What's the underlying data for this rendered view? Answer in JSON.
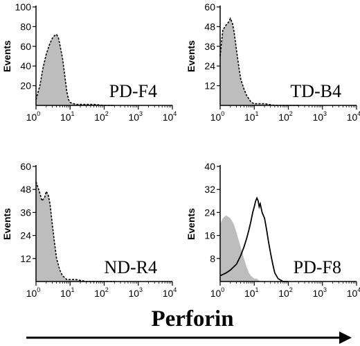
{
  "figure": {
    "x_axis_title": "Perforin",
    "y_axis_label": "Events"
  },
  "colors": {
    "filled_histogram": "#bdbdbd",
    "outline": "#000000"
  },
  "chart_data": [
    {
      "type": "histogram",
      "panel_label": "PD-F4",
      "ylabel": "Events",
      "x_scale": "log",
      "xlim": [
        1,
        10000
      ],
      "x_ticks": [
        "10⁰",
        "10¹",
        "10²",
        "10³",
        "10⁴"
      ],
      "ylim": [
        0,
        100
      ],
      "y_ticks": [
        20,
        40,
        60,
        80,
        100
      ],
      "series": [
        {
          "style": "filled-gray-with-dashed-outline",
          "x": [
            1,
            1.3,
            1.6,
            2,
            2.5,
            3,
            3.5,
            4,
            4.5,
            5,
            6,
            7,
            8,
            9,
            10,
            12,
            15,
            20,
            30,
            50,
            100,
            200
          ],
          "y": [
            6,
            20,
            38,
            52,
            62,
            68,
            71,
            72,
            69,
            62,
            48,
            30,
            14,
            6,
            3,
            2,
            1,
            1,
            1,
            1,
            0,
            0
          ]
        }
      ]
    },
    {
      "type": "histogram",
      "panel_label": "TD-B4",
      "ylabel": "Events",
      "x_scale": "log",
      "xlim": [
        1,
        10000
      ],
      "x_ticks": [
        "10⁰",
        "10¹",
        "10²",
        "10³",
        "10⁴"
      ],
      "ylim": [
        0,
        60
      ],
      "y_ticks": [
        12,
        24,
        36,
        48,
        60
      ],
      "series": [
        {
          "style": "filled-gray-with-dashed-outline",
          "x": [
            1,
            1.2,
            1.5,
            1.8,
            2,
            2.3,
            2.6,
            3,
            3.5,
            4,
            5,
            6,
            7,
            8,
            10,
            15,
            20,
            40,
            100,
            200
          ],
          "y": [
            30,
            46,
            49,
            51,
            53,
            50,
            44,
            34,
            24,
            16,
            10,
            6,
            4,
            2,
            1,
            1,
            1,
            0,
            0,
            0
          ]
        }
      ]
    },
    {
      "type": "histogram",
      "panel_label": "ND-R4",
      "ylabel": "Events",
      "x_scale": "log",
      "xlim": [
        1,
        10000
      ],
      "x_ticks": [
        "10⁰",
        "10¹",
        "10²",
        "10³",
        "10⁴"
      ],
      "ylim": [
        0,
        60
      ],
      "y_ticks": [
        12,
        24,
        36,
        48,
        60
      ],
      "series": [
        {
          "style": "filled-gray-with-dashed-outline",
          "x": [
            1,
            1.1,
            1.3,
            1.5,
            1.8,
            2,
            2.3,
            2.6,
            3,
            3.5,
            4,
            5,
            6,
            7,
            8,
            10,
            15,
            30,
            100,
            200
          ],
          "y": [
            52,
            50,
            46,
            42,
            44,
            47,
            45,
            40,
            30,
            20,
            12,
            6,
            3,
            2,
            1,
            1,
            1,
            0,
            0,
            0
          ]
        }
      ]
    },
    {
      "type": "histogram",
      "panel_label": "PD-F8",
      "ylabel": "Events",
      "x_scale": "log",
      "xlim": [
        1,
        10000
      ],
      "x_ticks": [
        "10⁰",
        "10¹",
        "10²",
        "10³",
        "10⁴"
      ],
      "ylim": [
        0,
        40
      ],
      "y_ticks": [
        8,
        16,
        24,
        32,
        40
      ],
      "series": [
        {
          "style": "filled-gray",
          "x": [
            1,
            1.2,
            1.5,
            2,
            2.5,
            3,
            4,
            5,
            6,
            7,
            8,
            10,
            12,
            15,
            20
          ],
          "y": [
            20,
            22,
            23,
            22,
            20,
            17,
            12,
            8,
            5,
            3,
            2,
            1,
            1,
            0,
            0
          ]
        },
        {
          "style": "solid-outline",
          "x": [
            1,
            1.5,
            2,
            3,
            4,
            5,
            6,
            7,
            8,
            9,
            10,
            11,
            12,
            13,
            14,
            15,
            17,
            20,
            23,
            26,
            30,
            35,
            40,
            50,
            70,
            100
          ],
          "y": [
            2,
            3,
            4,
            6,
            9,
            12,
            15,
            18,
            21,
            24,
            26,
            28,
            29,
            28,
            26,
            27,
            24,
            22,
            18,
            14,
            10,
            6,
            3,
            1,
            0,
            0
          ]
        }
      ]
    }
  ]
}
